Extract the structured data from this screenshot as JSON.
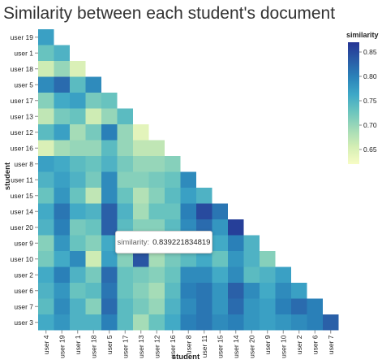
{
  "chart_data": {
    "type": "heatmap",
    "title": "Similarity between each student's document",
    "xlabel": "student",
    "ylabel": "student",
    "x_categories": [
      "user 4",
      "user 19",
      "user 1",
      "user 18",
      "user 5",
      "user 17",
      "user 13",
      "user 12",
      "user 16",
      "user 8",
      "user 11",
      "user 15",
      "user 14",
      "user 20",
      "user 9",
      "user 10",
      "user 2",
      "user 6",
      "user 7"
    ],
    "y_categories": [
      "user 19",
      "user 1",
      "user 18",
      "user 5",
      "user 17",
      "user 13",
      "user 12",
      "user 16",
      "user 8",
      "user 11",
      "user 15",
      "user 14",
      "user 20",
      "user 9",
      "user 10",
      "user 2",
      "user 6",
      "user 7",
      "user 3"
    ],
    "color_domain": [
      0.62,
      0.87
    ],
    "legend": {
      "title": "similarity",
      "ticks": [
        0.85,
        0.8,
        0.75,
        0.7,
        0.65
      ],
      "tick_labels": [
        "0.85",
        "0.80",
        "0.75",
        "0.70",
        "0.65"
      ],
      "position": "right"
    },
    "values": [
      [
        0.77
      ],
      [
        0.73,
        0.75
      ],
      [
        0.66,
        0.7,
        0.65
      ],
      [
        0.79,
        0.82,
        0.74,
        0.79
      ],
      [
        0.71,
        0.76,
        0.77,
        0.72,
        0.73
      ],
      [
        0.67,
        0.72,
        0.73,
        0.66,
        0.7,
        0.74
      ],
      [
        0.74,
        0.77,
        0.69,
        0.72,
        0.8,
        0.7,
        0.64
      ],
      [
        0.65,
        0.69,
        0.7,
        0.7,
        0.74,
        0.7,
        0.67,
        0.67
      ],
      [
        0.77,
        0.76,
        0.74,
        0.73,
        0.75,
        0.72,
        0.7,
        0.7,
        0.71
      ],
      [
        0.75,
        0.77,
        0.75,
        0.72,
        0.79,
        0.71,
        0.71,
        0.72,
        0.73,
        0.79
      ],
      [
        0.73,
        0.78,
        0.73,
        0.67,
        0.79,
        0.73,
        0.68,
        0.71,
        0.74,
        0.77,
        0.75
      ],
      [
        0.76,
        0.81,
        0.76,
        0.75,
        0.83,
        0.75,
        0.69,
        0.73,
        0.73,
        0.8,
        0.85,
        0.81
      ],
      [
        0.75,
        0.8,
        0.72,
        0.73,
        0.83,
        0.74,
        0.71,
        0.71,
        0.74,
        0.79,
        0.82,
        0.78,
        0.86
      ],
      [
        0.71,
        0.78,
        0.73,
        0.71,
        0.76,
        0.71,
        0.67,
        0.7,
        0.73,
        0.78,
        0.8,
        0.76,
        0.8,
        0.75
      ],
      [
        0.72,
        0.76,
        0.79,
        0.66,
        0.77,
        0.71,
        0.84,
        0.69,
        0.72,
        0.74,
        0.76,
        0.73,
        0.78,
        0.75,
        0.71
      ],
      [
        0.76,
        0.8,
        0.75,
        0.72,
        0.82,
        0.73,
        0.72,
        0.71,
        0.73,
        0.79,
        0.79,
        0.76,
        0.79,
        0.74,
        0.75,
        0.77
      ],
      [
        0.75,
        0.78,
        0.73,
        0.74,
        0.81,
        0.73,
        0.71,
        0.69,
        0.74,
        0.8,
        0.81,
        0.78,
        0.83,
        0.79,
        0.76,
        0.79,
        0.77
      ],
      [
        0.74,
        0.79,
        0.75,
        0.71,
        0.82,
        0.74,
        0.72,
        0.7,
        0.75,
        0.79,
        0.81,
        0.78,
        0.82,
        0.78,
        0.77,
        0.8,
        0.82,
        0.8
      ],
      [
        0.76,
        0.78,
        0.75,
        0.75,
        0.8,
        0.74,
        0.69,
        0.73,
        0.76,
        0.8,
        0.81,
        0.79,
        0.8,
        0.78,
        0.77,
        0.78,
        0.79,
        0.8,
        0.83
      ]
    ],
    "tooltip": {
      "key": "similarity:",
      "value": "0.839221834819"
    },
    "color_scale": [
      "#f7fcc4",
      "#d4eeb4",
      "#a3dbb7",
      "#6cc5be",
      "#3ea8c7",
      "#2a82b9",
      "#2a5ba6",
      "#253494"
    ]
  }
}
